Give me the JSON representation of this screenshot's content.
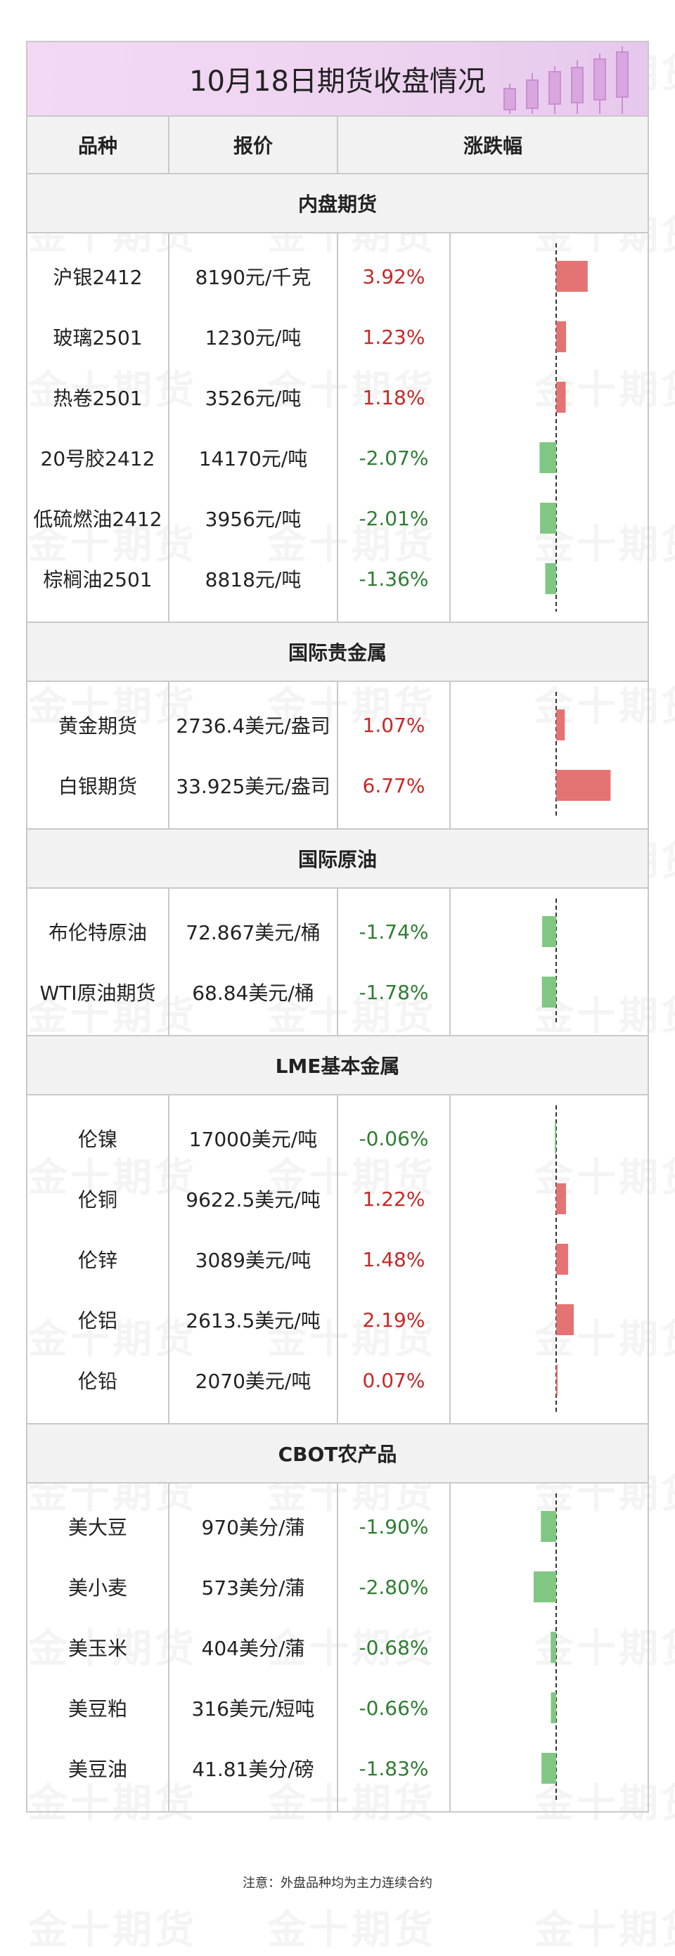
{
  "title": "10月18日期货收盘情况",
  "headers": {
    "name": "品种",
    "price": "报价",
    "change": "涨跌幅"
  },
  "watermark_text": "金十期货",
  "colors": {
    "positive": "#c62828",
    "negative": "#2e7d32",
    "bar_positive": "#e57373",
    "bar_negative": "#81c784"
  },
  "sections": [
    {
      "title": "内盘期货",
      "rows": [
        {
          "name": "沪银2412",
          "price": "8190元/千克",
          "change": "3.92%",
          "pct": 3.92
        },
        {
          "name": "玻璃2501",
          "price": "1230元/吨",
          "change": "1.23%",
          "pct": 1.23
        },
        {
          "name": "热卷2501",
          "price": "3526元/吨",
          "change": "1.18%",
          "pct": 1.18
        },
        {
          "name": "20号胶2412",
          "price": "14170元/吨",
          "change": "-2.07%",
          "pct": -2.07
        },
        {
          "name": "低硫燃油2412",
          "price": "3956元/吨",
          "change": "-2.01%",
          "pct": -2.01
        },
        {
          "name": "棕榈油2501",
          "price": "8818元/吨",
          "change": "-1.36%",
          "pct": -1.36
        }
      ]
    },
    {
      "title": "国际贵金属",
      "rows": [
        {
          "name": "黄金期货",
          "price": "2736.4美元/盎司",
          "change": "1.07%",
          "pct": 1.07
        },
        {
          "name": "白银期货",
          "price": "33.925美元/盎司",
          "change": "6.77%",
          "pct": 6.77
        }
      ]
    },
    {
      "title": "国际原油",
      "rows": [
        {
          "name": "布伦特原油",
          "price": "72.867美元/桶",
          "change": "-1.74%",
          "pct": -1.74
        },
        {
          "name": "WTI原油期货",
          "price": "68.84美元/桶",
          "change": "-1.78%",
          "pct": -1.78
        }
      ]
    },
    {
      "title": "LME基本金属",
      "rows": [
        {
          "name": "伦镍",
          "price": "17000美元/吨",
          "change": "-0.06%",
          "pct": -0.06
        },
        {
          "name": "伦铜",
          "price": "9622.5美元/吨",
          "change": "1.22%",
          "pct": 1.22
        },
        {
          "name": "伦锌",
          "price": "3089美元/吨",
          "change": "1.48%",
          "pct": 1.48
        },
        {
          "name": "伦铝",
          "price": "2613.5美元/吨",
          "change": "2.19%",
          "pct": 2.19
        },
        {
          "name": "伦铅",
          "price": "2070美元/吨",
          "change": "0.07%",
          "pct": 0.07
        }
      ]
    },
    {
      "title": "CBOT农产品",
      "rows": [
        {
          "name": "美大豆",
          "price": "970美分/蒲",
          "change": "-1.90%",
          "pct": -1.9
        },
        {
          "name": "美小麦",
          "price": "573美分/蒲",
          "change": "-2.80%",
          "pct": -2.8
        },
        {
          "name": "美玉米",
          "price": "404美分/蒲",
          "change": "-0.68%",
          "pct": -0.68
        },
        {
          "name": "美豆粕",
          "price": "316美元/短吨",
          "change": "-0.66%",
          "pct": -0.66
        },
        {
          "name": "美豆油",
          "price": "41.81美分/磅",
          "change": "-1.83%",
          "pct": -1.83
        }
      ]
    }
  ],
  "footnote": "注意：外盘品种均为主力连续合约"
}
